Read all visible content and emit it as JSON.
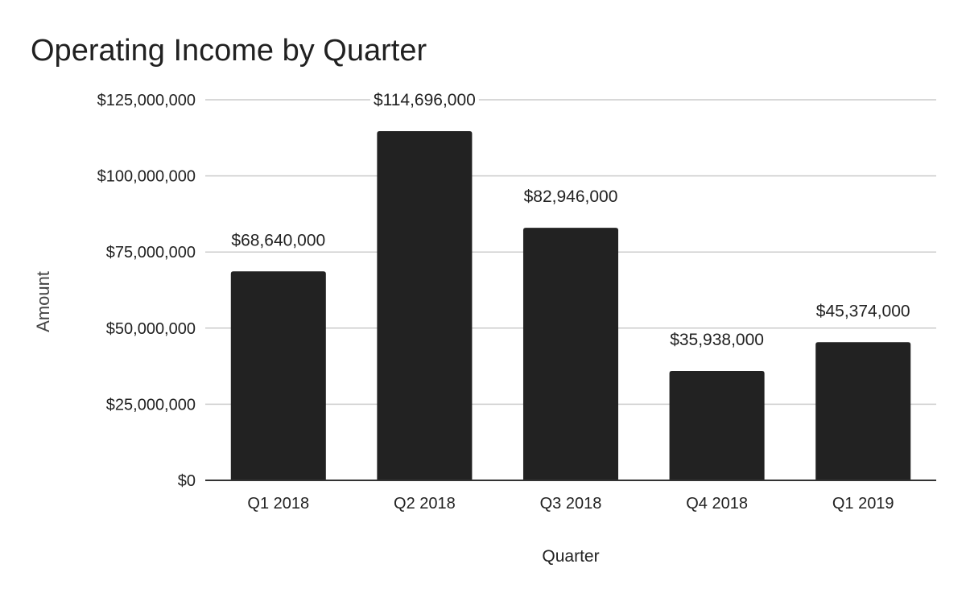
{
  "chart_data": {
    "type": "bar",
    "title": "Operating Income by Quarter",
    "xlabel": "Quarter",
    "ylabel": "Amount",
    "categories": [
      "Q1 2018",
      "Q2 2018",
      "Q3 2018",
      "Q4 2018",
      "Q1 2019"
    ],
    "values": [
      68640000,
      114696000,
      82946000,
      35938000,
      45374000
    ],
    "data_labels": [
      "$68,640,000",
      "$114,696,000",
      "$82,946,000",
      "$35,938,000",
      "$45,374,000"
    ],
    "ylim": [
      0,
      125000000
    ],
    "yticks": [
      0,
      25000000,
      50000000,
      75000000,
      100000000,
      125000000
    ],
    "ytick_labels": [
      "$0",
      "$25,000,000",
      "$50,000,000",
      "$75,000,000",
      "$100,000,000",
      "$125,000,000"
    ],
    "grid": true,
    "legend": "none",
    "bar_color": "#222222"
  }
}
